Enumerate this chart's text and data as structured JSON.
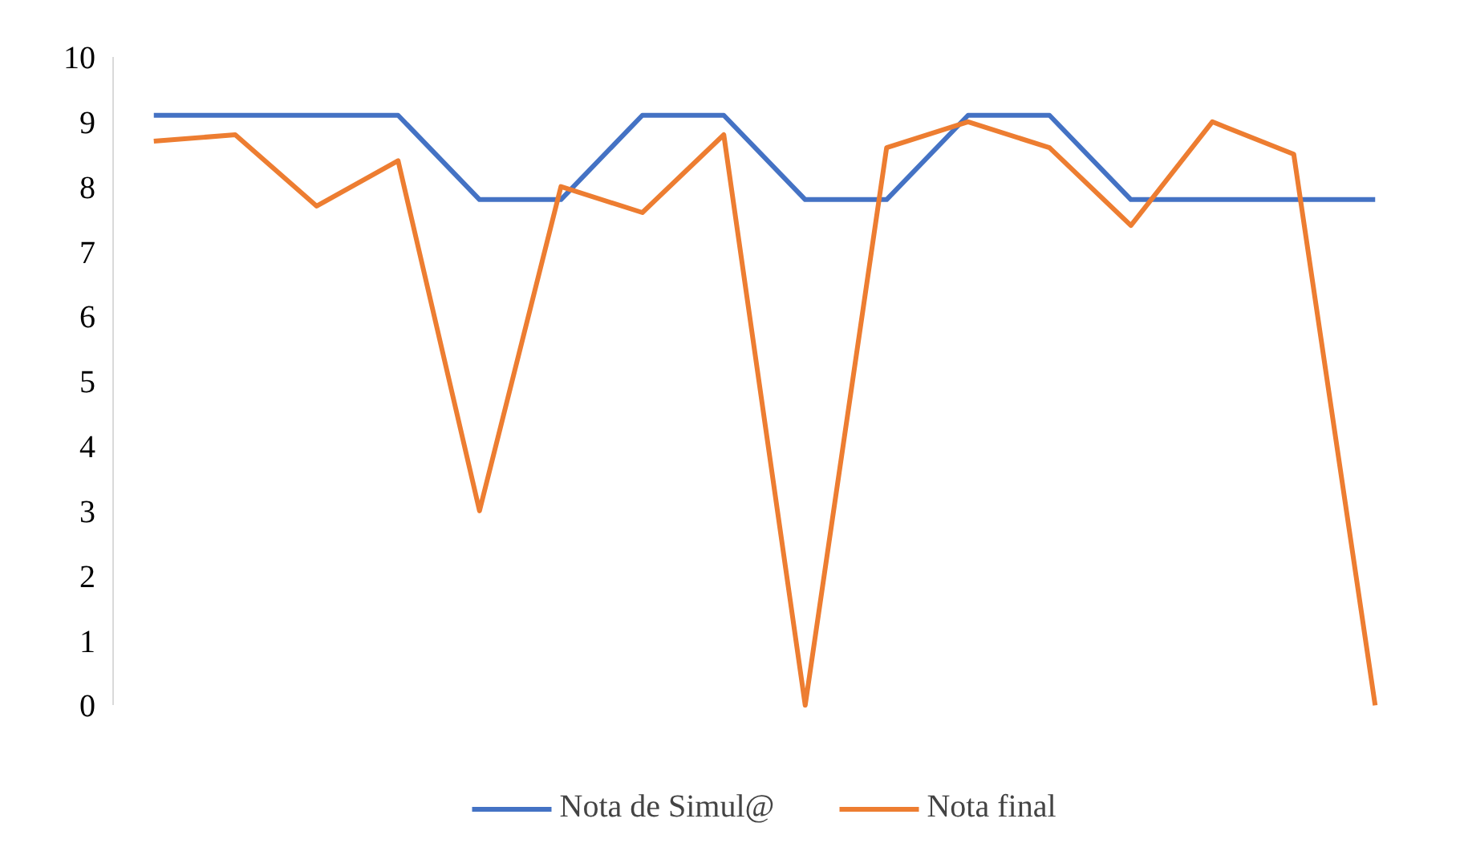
{
  "chart_data": {
    "type": "line",
    "categories": [
      null,
      null,
      null,
      null,
      null,
      null,
      null,
      null,
      null,
      null,
      null,
      null,
      null,
      null,
      null,
      null
    ],
    "series": [
      {
        "name": "Nota de Simul@",
        "color": "#4472c4",
        "values": [
          9.1,
          9.1,
          9.1,
          9.1,
          7.8,
          7.8,
          9.1,
          9.1,
          7.8,
          7.8,
          9.1,
          9.1,
          7.8,
          7.8,
          7.8,
          7.8
        ]
      },
      {
        "name": "Nota final",
        "color": "#ed7d31",
        "values": [
          8.7,
          8.8,
          7.7,
          8.4,
          3,
          8,
          7.6,
          8.8,
          0,
          8.6,
          9,
          8.6,
          7.4,
          9,
          8.5,
          0
        ]
      }
    ],
    "ylim": [
      0,
      10
    ],
    "yticks": [
      0,
      1,
      2,
      3,
      4,
      5,
      6,
      7,
      8,
      9,
      10
    ],
    "grid": false,
    "legend": "bottom",
    "tick_labels": "y",
    "line_style": "solid",
    "marker": "none"
  }
}
